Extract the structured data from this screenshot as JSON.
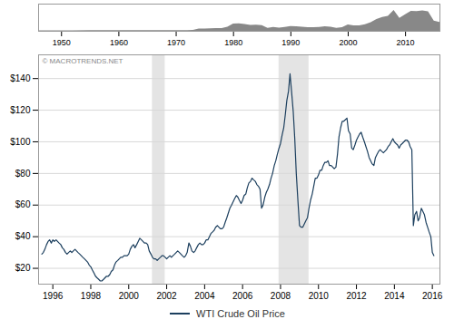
{
  "chart_data": [
    {
      "type": "area",
      "x": [
        1946,
        1948,
        1950,
        1952,
        1955,
        1957,
        1960,
        1962,
        1965,
        1968,
        1970,
        1971,
        1972,
        1973,
        1974,
        1975,
        1976,
        1977,
        1978,
        1979,
        1980,
        1981,
        1982,
        1983,
        1984,
        1985,
        1986,
        1987,
        1988,
        1989,
        1990,
        1991,
        1992,
        1993,
        1994,
        1995,
        1996,
        1997,
        1998,
        1999,
        2000,
        2001,
        2002,
        2003,
        2004,
        2005,
        2006,
        2007,
        2008,
        2009,
        2010,
        2011,
        2012,
        2013,
        2014,
        2015,
        2016
      ],
      "values": [
        0.02,
        0.025,
        0.025,
        0.027,
        0.028,
        0.03,
        0.029,
        0.03,
        0.03,
        0.032,
        0.034,
        0.036,
        0.036,
        0.04,
        0.11,
        0.105,
        0.115,
        0.125,
        0.13,
        0.2,
        0.35,
        0.36,
        0.32,
        0.28,
        0.29,
        0.27,
        0.14,
        0.18,
        0.15,
        0.18,
        0.23,
        0.22,
        0.2,
        0.17,
        0.17,
        0.18,
        0.22,
        0.2,
        0.14,
        0.17,
        0.3,
        0.26,
        0.26,
        0.31,
        0.41,
        0.56,
        0.66,
        0.72,
        1,
        0.62,
        0.79,
        0.95,
        0.94,
        0.98,
        0.93,
        0.49,
        0.42
      ],
      "color": "#888888",
      "xlim": [
        1946,
        2016
      ],
      "xticks": [
        1950,
        1960,
        1970,
        1980,
        1990,
        2000,
        2010
      ],
      "ylim": [
        0,
        1.3
      ],
      "tick_labels": "x"
    },
    {
      "type": "line",
      "x": [
        1995.42,
        1995.5,
        1995.58,
        1995.67,
        1995.75,
        1995.83,
        1995.92,
        1996.0,
        1996.08,
        1996.17,
        1996.25,
        1996.33,
        1996.42,
        1996.5,
        1996.58,
        1996.67,
        1996.75,
        1996.83,
        1996.92,
        1997.0,
        1997.08,
        1997.17,
        1997.25,
        1997.33,
        1997.42,
        1997.5,
        1997.58,
        1997.67,
        1997.75,
        1997.83,
        1997.92,
        1998.0,
        1998.08,
        1998.17,
        1998.25,
        1998.33,
        1998.42,
        1998.5,
        1998.58,
        1998.67,
        1998.75,
        1998.83,
        1998.92,
        1999.0,
        1999.08,
        1999.17,
        1999.25,
        1999.33,
        1999.42,
        1999.5,
        1999.58,
        1999.67,
        1999.75,
        1999.83,
        1999.92,
        2000.0,
        2000.08,
        2000.17,
        2000.25,
        2000.33,
        2000.42,
        2000.5,
        2000.58,
        2000.67,
        2000.75,
        2000.83,
        2000.92,
        2001.0,
        2001.08,
        2001.17,
        2001.25,
        2001.33,
        2001.42,
        2001.5,
        2001.58,
        2001.67,
        2001.75,
        2001.83,
        2001.92,
        2002.0,
        2002.08,
        2002.17,
        2002.25,
        2002.33,
        2002.42,
        2002.5,
        2002.58,
        2002.67,
        2002.75,
        2002.83,
        2002.92,
        2003.0,
        2003.08,
        2003.17,
        2003.25,
        2003.33,
        2003.42,
        2003.5,
        2003.58,
        2003.67,
        2003.75,
        2003.83,
        2003.92,
        2004.0,
        2004.08,
        2004.17,
        2004.25,
        2004.33,
        2004.42,
        2004.5,
        2004.58,
        2004.67,
        2004.75,
        2004.83,
        2004.92,
        2005.0,
        2005.08,
        2005.17,
        2005.25,
        2005.33,
        2005.42,
        2005.5,
        2005.58,
        2005.67,
        2005.75,
        2005.83,
        2005.92,
        2006.0,
        2006.08,
        2006.17,
        2006.25,
        2006.33,
        2006.42,
        2006.5,
        2006.58,
        2006.67,
        2006.75,
        2006.83,
        2006.92,
        2007.0,
        2007.08,
        2007.17,
        2007.25,
        2007.33,
        2007.42,
        2007.5,
        2007.58,
        2007.67,
        2007.75,
        2007.83,
        2007.92,
        2008.0,
        2008.08,
        2008.17,
        2008.25,
        2008.33,
        2008.42,
        2008.5,
        2008.58,
        2008.67,
        2008.75,
        2008.83,
        2008.92,
        2009.0,
        2009.08,
        2009.17,
        2009.25,
        2009.33,
        2009.42,
        2009.5,
        2009.58,
        2009.67,
        2009.75,
        2009.83,
        2009.92,
        2010.0,
        2010.08,
        2010.17,
        2010.25,
        2010.33,
        2010.42,
        2010.5,
        2010.58,
        2010.67,
        2010.75,
        2010.83,
        2010.92,
        2011.0,
        2011.08,
        2011.17,
        2011.25,
        2011.33,
        2011.42,
        2011.5,
        2011.58,
        2011.67,
        2011.75,
        2011.83,
        2011.92,
        2012.0,
        2012.08,
        2012.17,
        2012.25,
        2012.33,
        2012.42,
        2012.5,
        2012.58,
        2012.67,
        2012.75,
        2012.83,
        2012.92,
        2013.0,
        2013.08,
        2013.17,
        2013.25,
        2013.33,
        2013.42,
        2013.5,
        2013.58,
        2013.67,
        2013.75,
        2013.83,
        2013.92,
        2014.0,
        2014.08,
        2014.17,
        2014.25,
        2014.33,
        2014.42,
        2014.5,
        2014.58,
        2014.67,
        2014.75,
        2014.83,
        2014.92,
        2015.0,
        2015.08,
        2015.17,
        2015.25,
        2015.33,
        2015.42,
        2015.5,
        2015.58,
        2015.67,
        2015.75,
        2015.83,
        2015.92,
        2016.0,
        2016.08
      ],
      "series": [
        {
          "name": "WTI Crude Oil Price",
          "color": "#1c3f5e",
          "values": [
            29,
            30,
            32,
            35,
            37,
            38,
            36,
            38,
            37,
            38,
            37,
            36,
            35,
            33,
            32,
            30,
            29,
            30,
            31,
            30,
            31,
            32,
            31,
            30,
            29,
            28,
            27,
            26,
            25,
            24,
            22,
            21,
            19,
            17,
            15,
            14,
            13,
            12,
            12,
            13,
            14,
            15,
            15,
            16,
            18,
            19,
            22,
            24,
            25,
            26,
            27,
            27,
            28,
            28,
            28,
            29,
            32,
            34,
            35,
            33,
            35,
            37,
            39,
            38,
            37,
            36,
            36,
            35,
            31,
            29,
            27,
            26,
            26,
            25,
            26,
            27,
            28,
            28,
            27,
            26,
            27,
            28,
            27,
            28,
            29,
            30,
            31,
            30,
            29,
            28,
            27,
            28,
            30,
            36,
            34,
            31,
            30,
            31,
            33,
            35,
            36,
            35,
            35,
            36,
            38,
            38,
            40,
            42,
            43,
            44,
            46,
            47,
            46,
            45,
            45,
            46,
            49,
            52,
            55,
            58,
            60,
            62,
            64,
            66,
            65,
            63,
            61,
            63,
            66,
            67,
            71,
            74,
            75,
            77,
            76,
            75,
            73,
            72,
            70,
            58,
            60,
            65,
            68,
            70,
            73,
            77,
            80,
            85,
            88,
            92,
            96,
            99,
            104,
            109,
            117,
            126,
            132,
            143,
            132,
            119,
            102,
            80,
            62,
            47,
            46,
            46,
            48,
            50,
            52,
            58,
            63,
            67,
            72,
            77,
            77,
            79,
            82,
            82,
            85,
            87,
            87,
            88,
            85,
            85,
            84,
            83,
            84,
            92,
            103,
            109,
            113,
            113,
            114,
            115,
            107,
            105,
            96,
            95,
            98,
            101,
            103,
            105,
            106,
            103,
            100,
            97,
            94,
            90,
            88,
            86,
            85,
            90,
            92,
            94,
            95,
            94,
            93,
            94,
            95,
            97,
            98,
            100,
            102,
            100,
            99,
            98,
            96,
            98,
            99,
            100,
            101,
            101,
            100,
            97,
            95,
            47,
            54,
            56,
            50,
            52,
            58,
            56,
            54,
            49,
            46,
            43,
            40,
            30,
            28
          ]
        }
      ],
      "bands": [
        {
          "x0": 2001.25,
          "x1": 2001.92,
          "color": "#e4e4e4"
        },
        {
          "x0": 2007.92,
          "x1": 2009.5,
          "color": "#e4e4e4"
        }
      ],
      "annotations": [
        {
          "text": "© MACROTRENDS.NET"
        }
      ],
      "xlim": [
        1995.25,
        2016.4
      ],
      "xticks": [
        1996,
        1998,
        2000,
        2002,
        2004,
        2006,
        2008,
        2010,
        2012,
        2014,
        2016
      ],
      "ylim": [
        10,
        155
      ],
      "yticks": [
        {
          "value": 20,
          "label": "$20"
        },
        {
          "value": 40,
          "label": "$40"
        },
        {
          "value": 60,
          "label": "$60"
        },
        {
          "value": 80,
          "label": "$80"
        },
        {
          "value": 100,
          "label": "$100"
        },
        {
          "value": 120,
          "label": "$120"
        },
        {
          "value": 140,
          "label": "$140"
        }
      ],
      "grid": true,
      "legend": "bottom"
    }
  ]
}
